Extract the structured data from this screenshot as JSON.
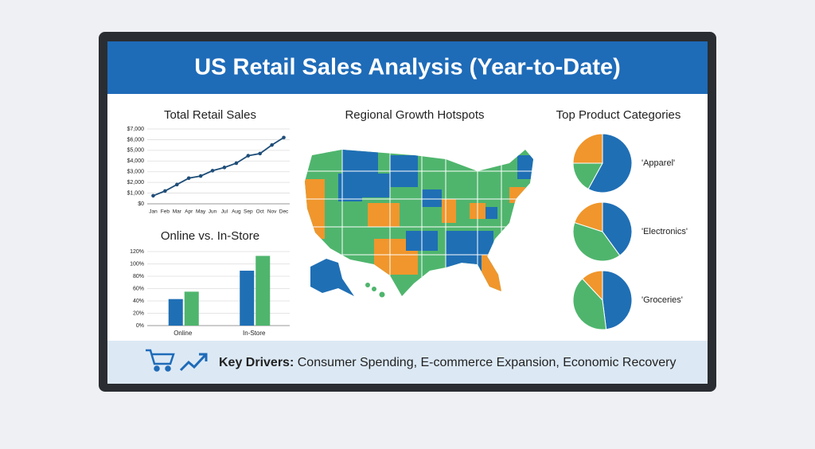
{
  "header": {
    "title": "US Retail Sales Analysis (Year-to-Date)"
  },
  "chart_data": [
    {
      "type": "line",
      "title": "Total Retail Sales",
      "categories": [
        "Jan",
        "Feb",
        "Mar",
        "Apr",
        "May",
        "Jun",
        "Jul",
        "Aug",
        "Sep",
        "Oct",
        "Nov",
        "Dec"
      ],
      "values": [
        750,
        1200,
        1800,
        2400,
        2600,
        3100,
        3400,
        3800,
        4500,
        4700,
        5500,
        6200
      ],
      "color": "#1f4e79",
      "ylim": [
        0,
        7000
      ],
      "yticks": [
        {
          "value": 0,
          "label": "$0"
        },
        {
          "value": 1000,
          "label": "$1,000"
        },
        {
          "value": 2000,
          "label": "$2,000"
        },
        {
          "value": 3000,
          "label": "$3,000"
        },
        {
          "value": 4000,
          "label": "$4,000"
        },
        {
          "value": 5000,
          "label": "$5,000"
        },
        {
          "value": 6000,
          "label": "$6,000"
        },
        {
          "value": 7000,
          "label": "$7,000"
        }
      ],
      "grid": true
    },
    {
      "type": "bar",
      "title": "Online vs. In-Store",
      "categories": [
        "Online",
        "In-Store"
      ],
      "series": [
        {
          "color": "#1f6fb5",
          "values": [
            43,
            89
          ]
        },
        {
          "color": "#4fb56d",
          "values": [
            55,
            113
          ]
        }
      ],
      "ylim": [
        0,
        120
      ],
      "yticks": [
        {
          "value": 0,
          "label": "0%"
        },
        {
          "value": 20,
          "label": "20%"
        },
        {
          "value": 40,
          "label": "40%"
        },
        {
          "value": 60,
          "label": "60%"
        },
        {
          "value": 80,
          "label": "80%"
        },
        {
          "value": 100,
          "label": "100%"
        },
        {
          "value": 120,
          "label": "120%"
        }
      ],
      "grid": true
    },
    {
      "type": "map",
      "title": "Regional Growth Hotspots"
    },
    {
      "type": "pie",
      "title": "Top Product Categories",
      "colors": [
        "#1f6fb5",
        "#4fb56d",
        "#f0962c"
      ],
      "pies": [
        {
          "label": "'Apparel'",
          "values": [
            58,
            17,
            25
          ]
        },
        {
          "label": "'Electronics'",
          "values": [
            40,
            40,
            20
          ]
        },
        {
          "label": "'Groceries'",
          "values": [
            48,
            40,
            12
          ]
        }
      ]
    }
  ],
  "footer": {
    "lead": "Key Drivers:",
    "text": "Consumer Spending, E-commerce Expansion, Economic Recovery"
  }
}
